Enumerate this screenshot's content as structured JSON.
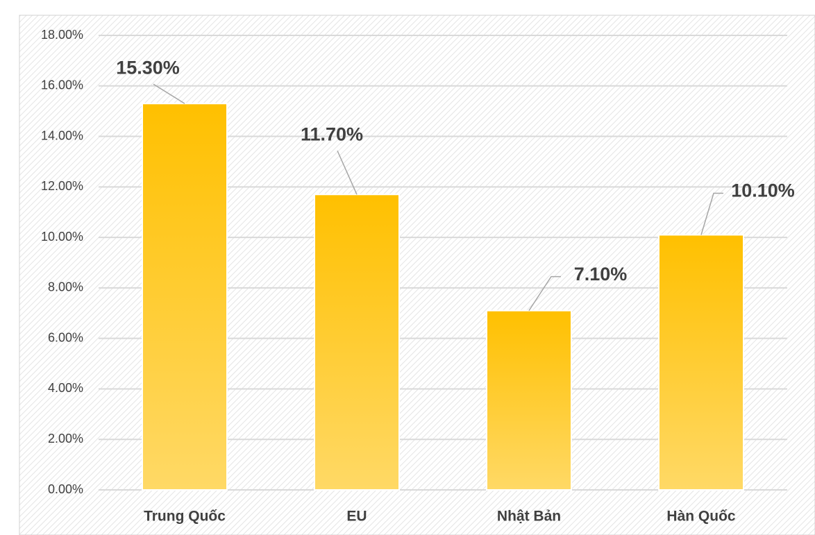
{
  "chart_data": {
    "type": "bar",
    "categories": [
      "Trung Quốc",
      "EU",
      "Nhật Bản",
      "Hàn Quốc"
    ],
    "values": [
      15.3,
      11.7,
      7.1,
      10.1
    ],
    "value_labels": [
      "15.30%",
      "11.70%",
      "7.10%",
      "10.10%"
    ],
    "color": "#ffc000",
    "ylim": [
      0,
      18
    ],
    "yticks": [
      {
        "value": 0,
        "label": "0.00%"
      },
      {
        "value": 2,
        "label": "2.00%"
      },
      {
        "value": 4,
        "label": "4.00%"
      },
      {
        "value": 6,
        "label": "6.00%"
      },
      {
        "value": 8,
        "label": "8.00%"
      },
      {
        "value": 10,
        "label": "10.00%"
      },
      {
        "value": 12,
        "label": "12.00%"
      },
      {
        "value": 14,
        "label": "14.00%"
      },
      {
        "value": 16,
        "label": "16.00%"
      },
      {
        "value": 18,
        "label": "18.00%"
      }
    ],
    "grid": true
  }
}
